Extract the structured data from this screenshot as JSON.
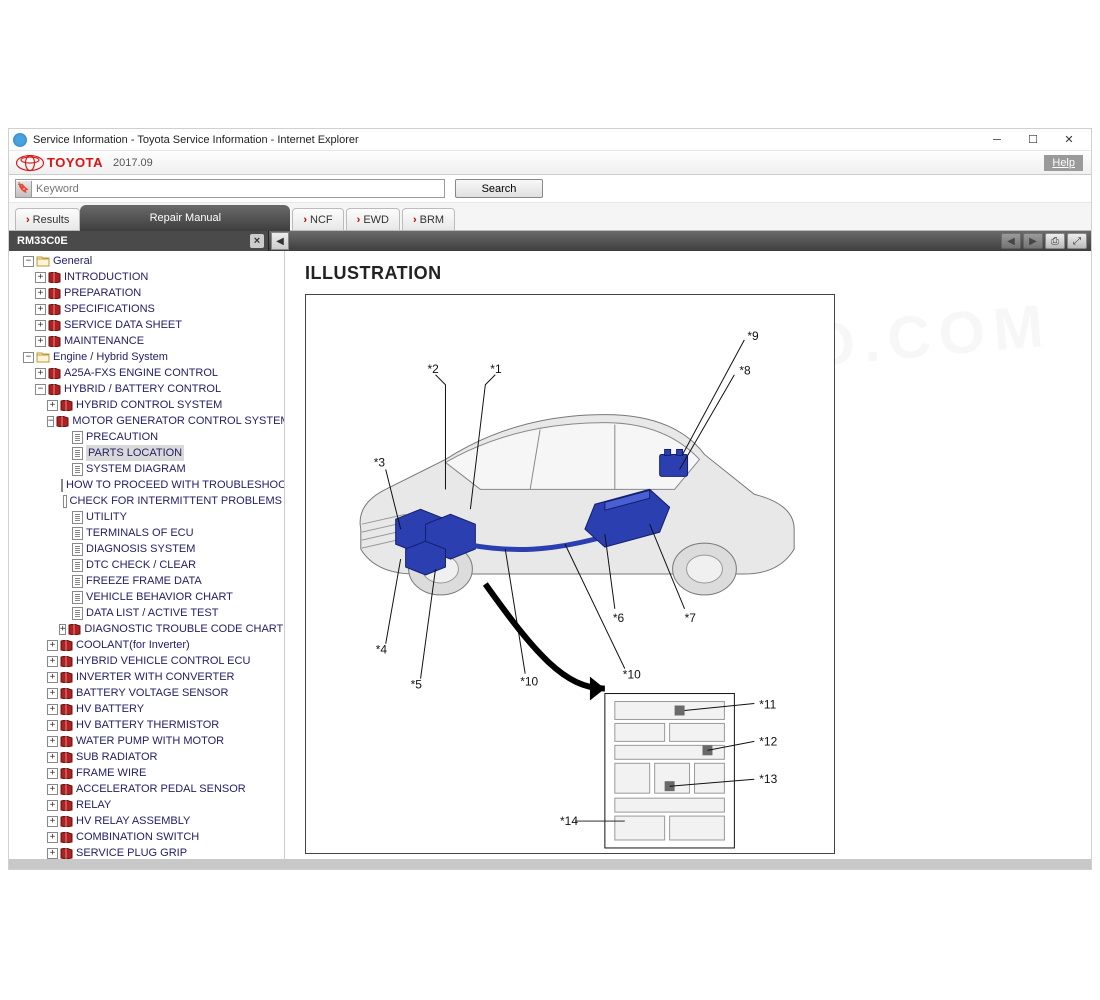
{
  "window_title": "Service Information - Toyota Service Information - Internet Explorer",
  "brand": {
    "name": "TOYOTA",
    "date": "2017.09"
  },
  "help_label": "Help",
  "search": {
    "placeholder": "Keyword",
    "button": "Search"
  },
  "tabs": {
    "results": "Results",
    "active": "Repair Manual",
    "sub": [
      "NCF",
      "EWD",
      "BRM"
    ]
  },
  "doc_tab": "RM33C0E",
  "section_title": "ILLUSTRATION",
  "colors": {
    "brand_red": "#d11",
    "link_blue": "#2a2a80",
    "book_red": "#a01818",
    "component_blue": "#2b3fb0",
    "car_grey": "#d5d5d5"
  },
  "tree": [
    {
      "d": 0,
      "t": "folder-open",
      "s": "-",
      "label": "General"
    },
    {
      "d": 1,
      "t": "book",
      "s": "+",
      "label": "INTRODUCTION"
    },
    {
      "d": 1,
      "t": "book",
      "s": "+",
      "label": "PREPARATION"
    },
    {
      "d": 1,
      "t": "book",
      "s": "+",
      "label": "SPECIFICATIONS"
    },
    {
      "d": 1,
      "t": "book",
      "s": "+",
      "label": "SERVICE DATA SHEET"
    },
    {
      "d": 1,
      "t": "book",
      "s": "+",
      "label": "MAINTENANCE"
    },
    {
      "d": 0,
      "t": "folder-open",
      "s": "-",
      "label": "Engine / Hybrid System"
    },
    {
      "d": 1,
      "t": "book",
      "s": "+",
      "label": "A25A-FXS ENGINE CONTROL"
    },
    {
      "d": 1,
      "t": "book",
      "s": "-",
      "label": "HYBRID / BATTERY CONTROL"
    },
    {
      "d": 2,
      "t": "book",
      "s": "+",
      "label": "HYBRID CONTROL SYSTEM"
    },
    {
      "d": 2,
      "t": "book",
      "s": "-",
      "label": "MOTOR GENERATOR CONTROL SYSTEM"
    },
    {
      "d": 3,
      "t": "page",
      "s": "",
      "label": "PRECAUTION"
    },
    {
      "d": 3,
      "t": "page",
      "s": "",
      "label": "PARTS LOCATION",
      "selected": true
    },
    {
      "d": 3,
      "t": "page",
      "s": "",
      "label": "SYSTEM DIAGRAM"
    },
    {
      "d": 3,
      "t": "page",
      "s": "",
      "label": "HOW TO PROCEED WITH TROUBLESHOOTING"
    },
    {
      "d": 3,
      "t": "page",
      "s": "",
      "label": "CHECK FOR INTERMITTENT PROBLEMS"
    },
    {
      "d": 3,
      "t": "page",
      "s": "",
      "label": "UTILITY"
    },
    {
      "d": 3,
      "t": "page",
      "s": "",
      "label": "TERMINALS OF ECU"
    },
    {
      "d": 3,
      "t": "page",
      "s": "",
      "label": "DIAGNOSIS SYSTEM"
    },
    {
      "d": 3,
      "t": "page",
      "s": "",
      "label": "DTC CHECK / CLEAR"
    },
    {
      "d": 3,
      "t": "page",
      "s": "",
      "label": "FREEZE FRAME DATA"
    },
    {
      "d": 3,
      "t": "page",
      "s": "",
      "label": "VEHICLE BEHAVIOR CHART"
    },
    {
      "d": 3,
      "t": "page",
      "s": "",
      "label": "DATA LIST / ACTIVE TEST"
    },
    {
      "d": 3,
      "t": "book",
      "s": "+",
      "label": "DIAGNOSTIC TROUBLE CODE CHART"
    },
    {
      "d": 2,
      "t": "book",
      "s": "+",
      "label": "COOLANT(for Inverter)"
    },
    {
      "d": 2,
      "t": "book",
      "s": "+",
      "label": "HYBRID VEHICLE CONTROL ECU"
    },
    {
      "d": 2,
      "t": "book",
      "s": "+",
      "label": "INVERTER WITH CONVERTER"
    },
    {
      "d": 2,
      "t": "book",
      "s": "+",
      "label": "BATTERY VOLTAGE SENSOR"
    },
    {
      "d": 2,
      "t": "book",
      "s": "+",
      "label": "HV BATTERY"
    },
    {
      "d": 2,
      "t": "book",
      "s": "+",
      "label": "HV BATTERY THERMISTOR"
    },
    {
      "d": 2,
      "t": "book",
      "s": "+",
      "label": "WATER PUMP WITH MOTOR"
    },
    {
      "d": 2,
      "t": "book",
      "s": "+",
      "label": "SUB RADIATOR"
    },
    {
      "d": 2,
      "t": "book",
      "s": "+",
      "label": "FRAME WIRE"
    },
    {
      "d": 2,
      "t": "book",
      "s": "+",
      "label": "ACCELERATOR PEDAL SENSOR"
    },
    {
      "d": 2,
      "t": "book",
      "s": "+",
      "label": "RELAY"
    },
    {
      "d": 2,
      "t": "book",
      "s": "+",
      "label": "HV RELAY ASSEMBLY"
    },
    {
      "d": 2,
      "t": "book",
      "s": "+",
      "label": "COMBINATION SWITCH"
    },
    {
      "d": 2,
      "t": "book",
      "s": "+",
      "label": "SERVICE PLUG GRIP"
    }
  ],
  "callouts": [
    "*1",
    "*2",
    "*3",
    "*4",
    "*5",
    "*6",
    "*7",
    "*8",
    "*9",
    "*10",
    "*10",
    "*11",
    "*12",
    "*13",
    "*14"
  ]
}
